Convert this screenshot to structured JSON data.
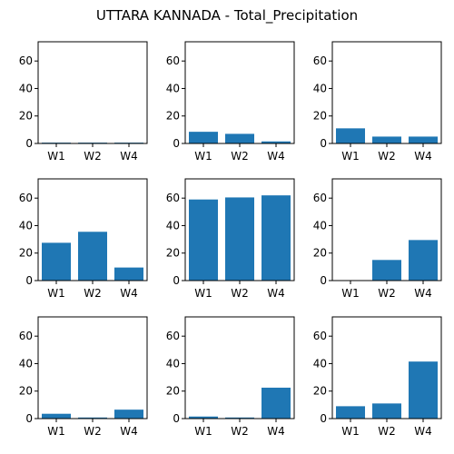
{
  "figure": {
    "title": "UTTARA KANNADA - Total_Precipitation"
  },
  "chart_data": {
    "type": "bar",
    "title": "UTTARA KANNADA - Total_Precipitation",
    "layout": "3x3 grid",
    "bar_color": "#1f77b4",
    "grid": false,
    "shared_categories": [
      "W1",
      "W2",
      "W4"
    ],
    "ylim": [
      0,
      74
    ],
    "yticks": [
      0,
      20,
      40,
      60
    ],
    "panels": [
      {
        "categories": [
          "W1",
          "W2",
          "W4"
        ],
        "values": [
          0.6,
          0.6,
          0.6
        ]
      },
      {
        "categories": [
          "W1",
          "W2",
          "W4"
        ],
        "values": [
          8.5,
          7.0,
          1.5
        ]
      },
      {
        "categories": [
          "W1",
          "W2",
          "W4"
        ],
        "values": [
          11.0,
          5.0,
          5.0
        ]
      },
      {
        "categories": [
          "W1",
          "W2",
          "W4"
        ],
        "values": [
          27.5,
          35.5,
          9.5
        ]
      },
      {
        "categories": [
          "W1",
          "W2",
          "W4"
        ],
        "values": [
          59.0,
          60.5,
          62.0
        ]
      },
      {
        "categories": [
          "W1",
          "W2",
          "W4"
        ],
        "values": [
          0.3,
          15.0,
          29.5
        ]
      },
      {
        "categories": [
          "W1",
          "W2",
          "W4"
        ],
        "values": [
          3.5,
          0.8,
          6.5
        ]
      },
      {
        "categories": [
          "W1",
          "W2",
          "W4"
        ],
        "values": [
          1.5,
          0.8,
          22.5
        ]
      },
      {
        "categories": [
          "W1",
          "W2",
          "W4"
        ],
        "values": [
          9.0,
          11.0,
          41.5
        ]
      }
    ]
  }
}
